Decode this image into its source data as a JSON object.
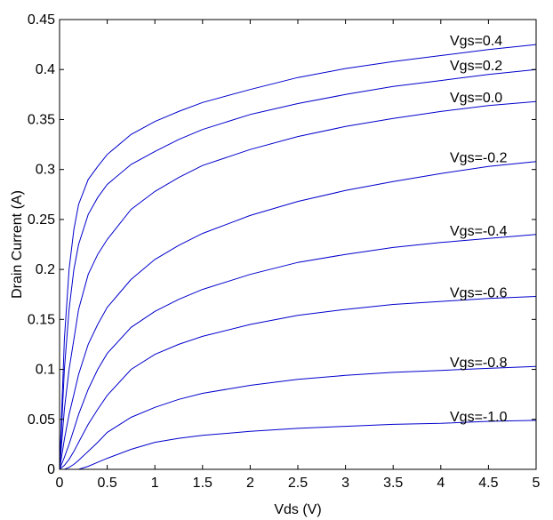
{
  "chart_data": {
    "type": "line",
    "title": "",
    "xlabel": "Vds (V)",
    "ylabel": "Drain Current (A)",
    "xlim": [
      0,
      5
    ],
    "ylim": [
      0,
      0.45
    ],
    "xticks": [
      "0",
      "0.5",
      "1",
      "1.5",
      "2",
      "2.5",
      "3",
      "3.5",
      "4",
      "4.5",
      "5"
    ],
    "yticks": [
      "0",
      "0.05",
      "0.1",
      "0.15",
      "0.2",
      "0.25",
      "0.3",
      "0.35",
      "0.4",
      "0.45"
    ],
    "grid": false,
    "legend": "none",
    "line_color": "#0000cc",
    "x": [
      0,
      0.05,
      0.1,
      0.15,
      0.2,
      0.3,
      0.4,
      0.5,
      0.75,
      1,
      1.25,
      1.5,
      2,
      2.5,
      3,
      3.5,
      4,
      4.5,
      5
    ],
    "series": [
      {
        "label": "Vgs=0.4",
        "values": [
          0,
          0.13,
          0.2,
          0.24,
          0.265,
          0.29,
          0.303,
          0.315,
          0.335,
          0.348,
          0.358,
          0.367,
          0.38,
          0.392,
          0.401,
          0.408,
          0.414,
          0.42,
          0.425
        ]
      },
      {
        "label": "Vgs=0.2",
        "values": [
          0,
          0.1,
          0.16,
          0.2,
          0.225,
          0.255,
          0.272,
          0.285,
          0.305,
          0.318,
          0.33,
          0.34,
          0.355,
          0.366,
          0.375,
          0.383,
          0.389,
          0.395,
          0.4
        ]
      },
      {
        "label": "Vgs=0.0",
        "values": [
          0,
          0.06,
          0.1,
          0.13,
          0.16,
          0.195,
          0.215,
          0.23,
          0.26,
          0.278,
          0.292,
          0.304,
          0.32,
          0.333,
          0.343,
          0.351,
          0.358,
          0.364,
          0.368
        ]
      },
      {
        "label": "Vgs=-0.2",
        "values": [
          0,
          0.03,
          0.055,
          0.075,
          0.095,
          0.125,
          0.145,
          0.162,
          0.19,
          0.21,
          0.224,
          0.236,
          0.254,
          0.268,
          0.279,
          0.288,
          0.296,
          0.303,
          0.308
        ]
      },
      {
        "label": "Vgs=-0.4",
        "values": [
          0,
          0.012,
          0.025,
          0.04,
          0.055,
          0.08,
          0.1,
          0.116,
          0.142,
          0.158,
          0.17,
          0.18,
          0.195,
          0.207,
          0.215,
          0.222,
          0.227,
          0.231,
          0.235
        ]
      },
      {
        "label": "Vgs=-0.6",
        "values": [
          0,
          0.004,
          0.01,
          0.018,
          0.027,
          0.045,
          0.06,
          0.074,
          0.1,
          0.115,
          0.125,
          0.133,
          0.145,
          0.154,
          0.16,
          0.165,
          0.168,
          0.171,
          0.173
        ]
      },
      {
        "label": "Vgs=-0.8",
        "values": [
          0,
          0.0,
          0.002,
          0.005,
          0.009,
          0.018,
          0.027,
          0.037,
          0.052,
          0.062,
          0.07,
          0.076,
          0.084,
          0.09,
          0.094,
          0.097,
          0.099,
          0.101,
          0.103
        ]
      },
      {
        "label": "Vgs=-1.0",
        "values": [
          0,
          0.0,
          0.0,
          0.0,
          0.0,
          0.003,
          0.007,
          0.011,
          0.02,
          0.027,
          0.031,
          0.034,
          0.038,
          0.041,
          0.043,
          0.045,
          0.046,
          0.048,
          0.049
        ]
      }
    ]
  }
}
